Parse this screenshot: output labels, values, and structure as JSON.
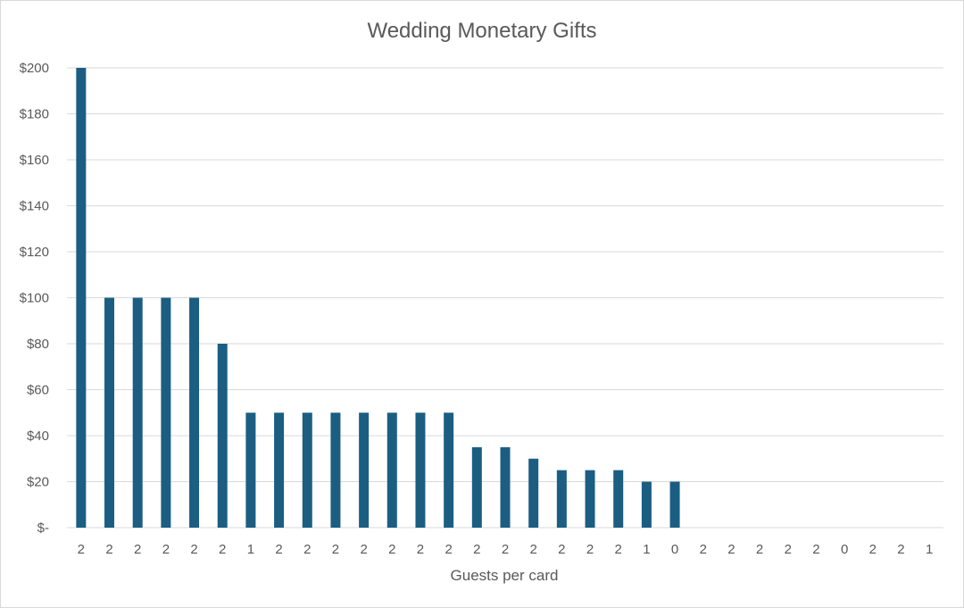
{
  "chart_data": {
    "type": "bar",
    "title": "Wedding Monetary Gifts",
    "xlabel": "Guests per card",
    "ylabel": "",
    "ylim": [
      0,
      200
    ],
    "y_ticks": [
      0,
      20,
      40,
      60,
      80,
      100,
      120,
      140,
      160,
      180,
      200
    ],
    "y_tick_labels": [
      "$-",
      "$20",
      "$40",
      "$60",
      "$80",
      "$100",
      "$120",
      "$140",
      "$160",
      "$180",
      "$200"
    ],
    "categories": [
      "2",
      "2",
      "2",
      "2",
      "2",
      "2",
      "1",
      "2",
      "2",
      "2",
      "2",
      "2",
      "2",
      "2",
      "2",
      "2",
      "2",
      "2",
      "2",
      "2",
      "1",
      "0",
      "2",
      "2",
      "2",
      "2",
      "2",
      "0",
      "2",
      "2",
      "1"
    ],
    "values": [
      200,
      100,
      100,
      100,
      100,
      80,
      50,
      50,
      50,
      50,
      50,
      50,
      50,
      50,
      35,
      35,
      30,
      25,
      25,
      25,
      20,
      20,
      0,
      0,
      0,
      0,
      0,
      0,
      0,
      0,
      0
    ],
    "grid": true,
    "legend": "none",
    "bar_color": "#1b5e82",
    "grid_color": "#d9d9d9",
    "text_color": "#595959"
  }
}
